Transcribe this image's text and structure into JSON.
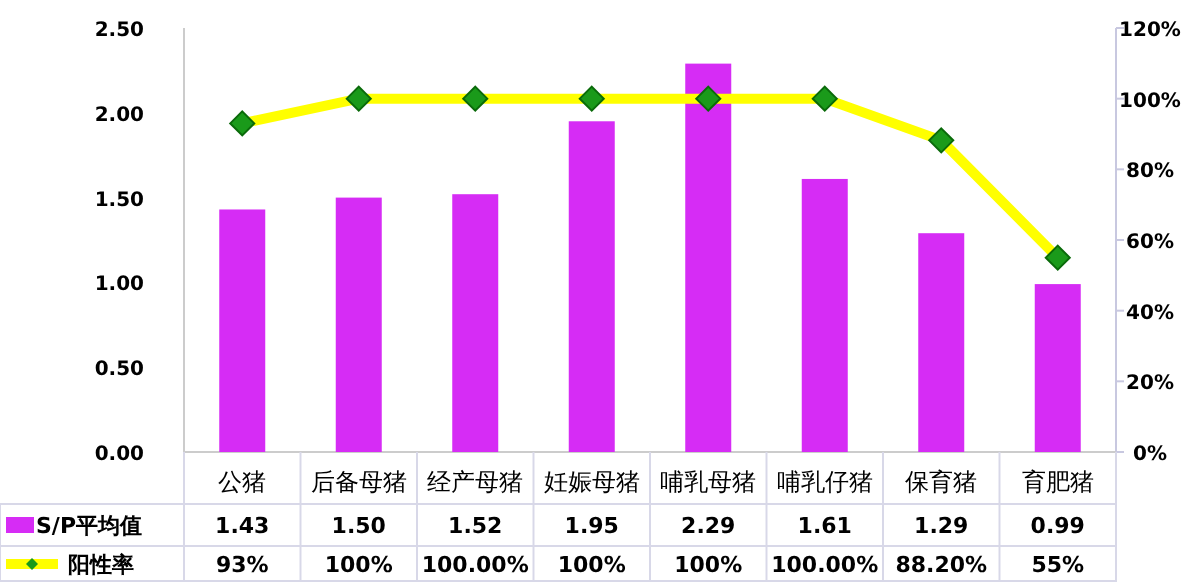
{
  "chart_data": {
    "type": "bar",
    "categories": [
      "公猪",
      "后备母猪",
      "经产母猪",
      "妊娠母猪",
      "哺乳母猪",
      "哺乳仔猪",
      "保育猪",
      "育肥猪"
    ],
    "series": [
      {
        "name": "S/P平均值",
        "color": "#d62cf5",
        "values": [
          1.43,
          1.5,
          1.52,
          1.95,
          2.29,
          1.61,
          1.29,
          0.99
        ],
        "value_labels": [
          "1.43",
          "1.50",
          "1.52",
          "1.95",
          "2.29",
          "1.61",
          "1.29",
          "0.99"
        ]
      },
      {
        "name": "阳性率",
        "type": "line",
        "axis": "y2",
        "color": "#ffff00",
        "marker": "diamond",
        "values": [
          93,
          100,
          100,
          100,
          100,
          100,
          88.2,
          55
        ],
        "value_labels": [
          "93%",
          "100%",
          "100.00%",
          "100%",
          "100%",
          "100.00%",
          "88.20%",
          "55%"
        ]
      }
    ],
    "ylim": [
      0,
      2.5
    ],
    "yticks": [
      {
        "value": 0,
        "label": "0.00"
      },
      {
        "value": 0.5,
        "label": "0.50"
      },
      {
        "value": 1,
        "label": "1.00"
      },
      {
        "value": 1.5,
        "label": "1.50"
      },
      {
        "value": 2,
        "label": "2.00"
      },
      {
        "value": 2.5,
        "label": "2.50"
      }
    ],
    "y2lim": [
      0,
      120
    ],
    "y2ticks": [
      {
        "value": 0,
        "label": "0%"
      },
      {
        "value": 20,
        "label": "20%"
      },
      {
        "value": 40,
        "label": "40%"
      },
      {
        "value": 60,
        "label": "60%"
      },
      {
        "value": 80,
        "label": "80%"
      },
      {
        "value": 100,
        "label": "100%"
      },
      {
        "value": 120,
        "label": "120%"
      }
    ],
    "grid": false,
    "legend": "bottom"
  }
}
